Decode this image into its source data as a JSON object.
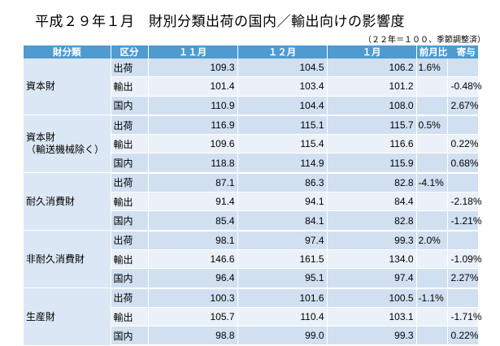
{
  "title": "平成２９年１月　財別分類出荷の国内／輸出向けの影響度",
  "note": "（２２年＝１００、季節調整済）",
  "headers": {
    "category": "財分類",
    "class": "区分",
    "nov": "１１月",
    "dec": "１２月",
    "jan": "１月",
    "change": "前月比　寄与"
  },
  "groups": [
    {
      "name": "資本財",
      "name2": "",
      "rows": [
        {
          "label": "出荷",
          "nov": "109.3",
          "dec": "104.5",
          "jan": "106.2",
          "ratio": "1.6%",
          "contrib": ""
        },
        {
          "label": "輸出",
          "nov": "101.4",
          "dec": "103.4",
          "jan": "101.2",
          "ratio": "",
          "contrib": "-0.48%"
        },
        {
          "label": "国内",
          "nov": "110.9",
          "dec": "104.4",
          "jan": "108.0",
          "ratio": "",
          "contrib": "2.67%"
        }
      ]
    },
    {
      "name": "資本財",
      "name2": "（輸送機械除く）",
      "rows": [
        {
          "label": "出荷",
          "nov": "116.9",
          "dec": "115.1",
          "jan": "115.7",
          "ratio": "0.5%",
          "contrib": ""
        },
        {
          "label": "輸出",
          "nov": "109.6",
          "dec": "115.4",
          "jan": "116.6",
          "ratio": "",
          "contrib": "0.22%"
        },
        {
          "label": "国内",
          "nov": "118.8",
          "dec": "114.9",
          "jan": "115.9",
          "ratio": "",
          "contrib": "0.68%"
        }
      ]
    },
    {
      "name": "耐久消費財",
      "name2": "",
      "rows": [
        {
          "label": "出荷",
          "nov": "87.1",
          "dec": "86.3",
          "jan": "82.8",
          "ratio": "-4.1%",
          "contrib": ""
        },
        {
          "label": "輸出",
          "nov": "91.4",
          "dec": "94.1",
          "jan": "84.4",
          "ratio": "",
          "contrib": "-2.18%"
        },
        {
          "label": "国内",
          "nov": "85.4",
          "dec": "84.1",
          "jan": "82.8",
          "ratio": "",
          "contrib": "-1.21%"
        }
      ]
    },
    {
      "name": "非耐久消費財",
      "name2": "",
      "rows": [
        {
          "label": "出荷",
          "nov": "98.1",
          "dec": "97.4",
          "jan": "99.3",
          "ratio": "2.0%",
          "contrib": ""
        },
        {
          "label": "輸出",
          "nov": "146.6",
          "dec": "161.5",
          "jan": "134.0",
          "ratio": "",
          "contrib": "-1.09%"
        },
        {
          "label": "国内",
          "nov": "96.4",
          "dec": "95.1",
          "jan": "97.4",
          "ratio": "",
          "contrib": "2.27%"
        }
      ]
    },
    {
      "name": "生産財",
      "name2": "",
      "rows": [
        {
          "label": "出荷",
          "nov": "100.3",
          "dec": "101.6",
          "jan": "100.5",
          "ratio": "-1.1%",
          "contrib": ""
        },
        {
          "label": "輸出",
          "nov": "105.7",
          "dec": "110.4",
          "jan": "103.1",
          "ratio": "",
          "contrib": "-1.71%"
        },
        {
          "label": "国内",
          "nov": "98.8",
          "dec": "99.0",
          "jan": "99.3",
          "ratio": "",
          "contrib": "0.22%"
        }
      ]
    }
  ]
}
